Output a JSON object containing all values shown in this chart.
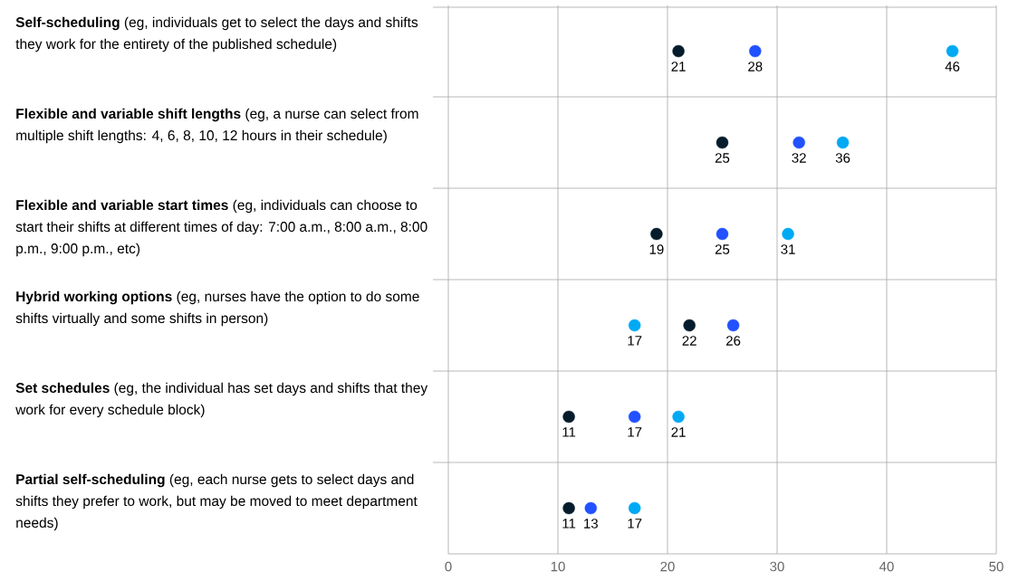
{
  "chart_data": {
    "type": "scatter",
    "orientation": "horizontal",
    "categories": [
      "**Self-scheduling** (eg, individuals get to select the days and shifts they work for the entirety of the published schedule)",
      "**Flexible and variable shift lengths** (eg, a nurse can select from multiple shift lengths: 4, 6, 8, 10, 12 hours in their schedule)",
      "**Flexible and variable start times** (eg, individuals can choose to start their shifts at different times of day: 7:00 a.m., 8:00 a.m., 8:00 p.m., 9:00 p.m., etc)",
      "**Hybrid working options** (eg, nurses have the option to do some shifts virtually and some shifts in person)",
      "**Set schedules** (eg, the individual has set days and shifts that they work for every schedule block)",
      "**Partial self-scheduling** (eg, each nurse gets to select days and shifts they prefer to work, but may be moved to meet department needs)"
    ],
    "series": [
      {
        "color": "#051c2c",
        "values": [
          21,
          25,
          19,
          22,
          11,
          11
        ]
      },
      {
        "color": "#2251ff",
        "values": [
          28,
          32,
          25,
          26,
          17,
          13
        ]
      },
      {
        "color": "#00a9f4",
        "values": [
          46,
          36,
          31,
          17,
          21,
          17
        ]
      }
    ],
    "xlim": [
      0,
      50
    ],
    "xticks": [
      0,
      10,
      20,
      30,
      40,
      50
    ],
    "grid": "x",
    "marker": "circle",
    "data_labels": true
  }
}
